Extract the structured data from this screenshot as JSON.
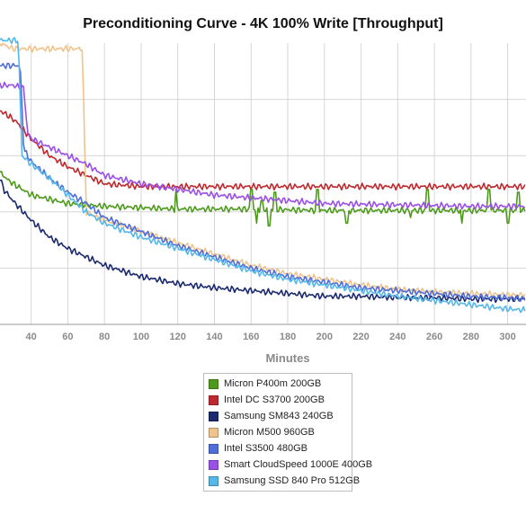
{
  "chart_data": {
    "type": "line",
    "title": "Preconditioning Curve - 4K 100% Write [Throughput]",
    "xlabel": "Minutes",
    "ylabel": "",
    "x_ticks": [
      40,
      60,
      80,
      100,
      120,
      140,
      160,
      180,
      200,
      220,
      240,
      260,
      280,
      300
    ],
    "xlim": [
      23,
      310
    ],
    "grid": true,
    "legend_position": "bottom",
    "series": [
      {
        "name": "Micron P400m 200GB",
        "color": "#4e9a1c",
        "points": [
          [
            23,
            0.54
          ],
          [
            28,
            0.51
          ],
          [
            40,
            0.46
          ],
          [
            60,
            0.43
          ],
          [
            80,
            0.42
          ],
          [
            100,
            0.415
          ],
          [
            120,
            0.41
          ],
          [
            140,
            0.41
          ],
          [
            160,
            0.41
          ],
          [
            200,
            0.405
          ],
          [
            240,
            0.405
          ],
          [
            280,
            0.405
          ],
          [
            310,
            0.405
          ]
        ],
        "spikes": [
          [
            119,
            0.48
          ],
          [
            160,
            0.48
          ],
          [
            163,
            0.36
          ],
          [
            166,
            0.44
          ],
          [
            170,
            0.35
          ],
          [
            173,
            0.47
          ],
          [
            196,
            0.48
          ],
          [
            212,
            0.36
          ],
          [
            247,
            0.38
          ],
          [
            256,
            0.48
          ],
          [
            275,
            0.36
          ],
          [
            290,
            0.48
          ],
          [
            300,
            0.36
          ],
          [
            306,
            0.47
          ]
        ]
      },
      {
        "name": "Intel DC S3700 200GB",
        "color": "#c0282d",
        "points": [
          [
            23,
            0.76
          ],
          [
            28,
            0.74
          ],
          [
            32,
            0.72
          ],
          [
            40,
            0.66
          ],
          [
            50,
            0.6
          ],
          [
            60,
            0.56
          ],
          [
            70,
            0.53
          ],
          [
            80,
            0.5
          ],
          [
            90,
            0.495
          ],
          [
            100,
            0.49
          ],
          [
            120,
            0.49
          ],
          [
            160,
            0.49
          ],
          [
            200,
            0.49
          ],
          [
            240,
            0.49
          ],
          [
            280,
            0.49
          ],
          [
            310,
            0.49
          ]
        ]
      },
      {
        "name": "Samsung SM843 240GB",
        "color": "#1b2a6e",
        "points": [
          [
            23,
            0.52
          ],
          [
            25,
            0.48
          ],
          [
            30,
            0.44
          ],
          [
            40,
            0.37
          ],
          [
            50,
            0.31
          ],
          [
            60,
            0.27
          ],
          [
            70,
            0.24
          ],
          [
            80,
            0.21
          ],
          [
            90,
            0.19
          ],
          [
            100,
            0.17
          ],
          [
            120,
            0.145
          ],
          [
            140,
            0.13
          ],
          [
            160,
            0.12
          ],
          [
            180,
            0.11
          ],
          [
            200,
            0.1
          ],
          [
            220,
            0.1
          ],
          [
            240,
            0.095
          ],
          [
            260,
            0.095
          ],
          [
            280,
            0.09
          ],
          [
            300,
            0.09
          ],
          [
            310,
            0.09
          ]
        ]
      },
      {
        "name": "Micron M500 960GB",
        "color": "#f0c38c",
        "points": [
          [
            23,
            1.0
          ],
          [
            30,
            0.98
          ],
          [
            40,
            0.98
          ],
          [
            60,
            0.98
          ],
          [
            68,
            0.98
          ],
          [
            70,
            0.4
          ],
          [
            80,
            0.37
          ],
          [
            100,
            0.33
          ],
          [
            120,
            0.29
          ],
          [
            140,
            0.25
          ],
          [
            160,
            0.21
          ],
          [
            180,
            0.18
          ],
          [
            200,
            0.16
          ],
          [
            220,
            0.14
          ],
          [
            240,
            0.125
          ],
          [
            260,
            0.115
          ],
          [
            280,
            0.11
          ],
          [
            300,
            0.105
          ],
          [
            310,
            0.105
          ]
        ]
      },
      {
        "name": "Intel S3500 480GB",
        "color": "#4f6ddb",
        "points": [
          [
            23,
            0.92
          ],
          [
            30,
            0.92
          ],
          [
            34,
            0.92
          ],
          [
            36,
            0.62
          ],
          [
            40,
            0.58
          ],
          [
            50,
            0.52
          ],
          [
            60,
            0.47
          ],
          [
            70,
            0.43
          ],
          [
            80,
            0.38
          ],
          [
            100,
            0.33
          ],
          [
            120,
            0.28
          ],
          [
            140,
            0.24
          ],
          [
            160,
            0.2
          ],
          [
            180,
            0.17
          ],
          [
            200,
            0.15
          ],
          [
            220,
            0.13
          ],
          [
            240,
            0.12
          ],
          [
            260,
            0.11
          ],
          [
            280,
            0.1
          ],
          [
            300,
            0.095
          ],
          [
            310,
            0.09
          ]
        ]
      },
      {
        "name": "Smart CloudSpeed 1000E 400GB",
        "color": "#9a4fe6",
        "points": [
          [
            23,
            0.85
          ],
          [
            30,
            0.85
          ],
          [
            36,
            0.84
          ],
          [
            38,
            0.68
          ],
          [
            40,
            0.66
          ],
          [
            50,
            0.63
          ],
          [
            60,
            0.6
          ],
          [
            70,
            0.57
          ],
          [
            80,
            0.53
          ],
          [
            100,
            0.5
          ],
          [
            120,
            0.48
          ],
          [
            140,
            0.46
          ],
          [
            160,
            0.45
          ],
          [
            180,
            0.44
          ],
          [
            200,
            0.43
          ],
          [
            240,
            0.425
          ],
          [
            280,
            0.42
          ],
          [
            310,
            0.42
          ]
        ]
      },
      {
        "name": "Samsung SSD 840 Pro 512GB",
        "color": "#55b7e8",
        "points": [
          [
            23,
            1.01
          ],
          [
            30,
            1.01
          ],
          [
            33,
            1.01
          ],
          [
            35,
            0.6
          ],
          [
            40,
            0.57
          ],
          [
            50,
            0.52
          ],
          [
            60,
            0.46
          ],
          [
            70,
            0.4
          ],
          [
            80,
            0.36
          ],
          [
            100,
            0.31
          ],
          [
            120,
            0.27
          ],
          [
            140,
            0.23
          ],
          [
            160,
            0.19
          ],
          [
            180,
            0.16
          ],
          [
            200,
            0.14
          ],
          [
            220,
            0.12
          ],
          [
            240,
            0.1
          ],
          [
            260,
            0.085
          ],
          [
            280,
            0.07
          ],
          [
            300,
            0.055
          ],
          [
            310,
            0.05
          ]
        ]
      }
    ]
  }
}
